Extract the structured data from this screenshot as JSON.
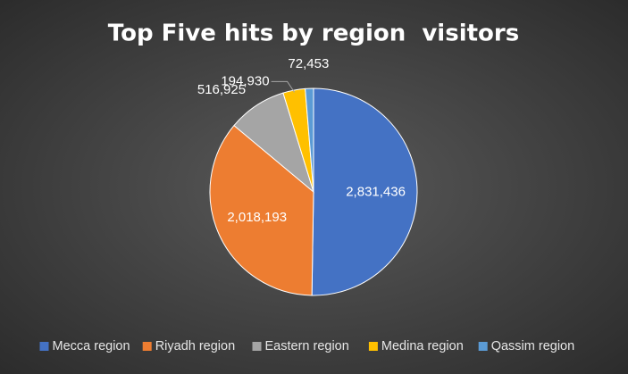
{
  "chart_data": {
    "type": "pie",
    "title": "Top Five hits by region  visitors",
    "categories": [
      "Mecca region",
      "Riyadh region",
      "Eastern region",
      "Medina region",
      "Qassim region"
    ],
    "values": [
      2831436,
      2018193,
      516925,
      194930,
      72453
    ],
    "value_labels": [
      "2,831,436",
      "2,018,193",
      "516,925",
      "194,930",
      "72,453"
    ],
    "colors": [
      "#4472c4",
      "#ed7d31",
      "#a5a5a5",
      "#ffc000",
      "#5b9bd5"
    ],
    "legend": "bottom"
  }
}
